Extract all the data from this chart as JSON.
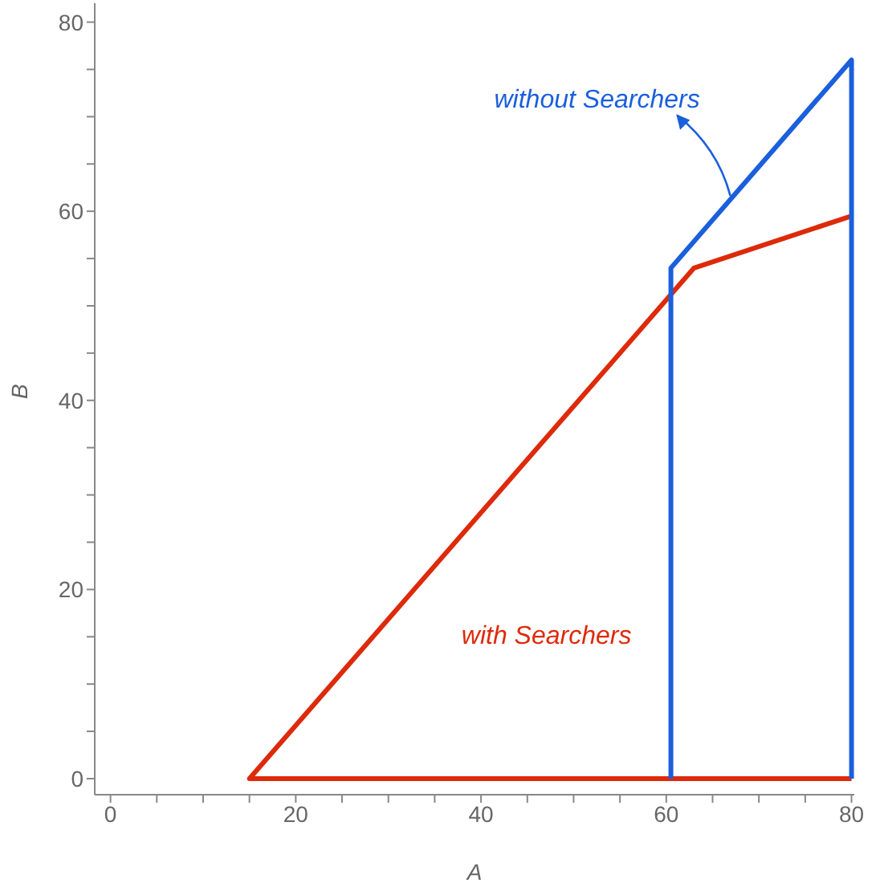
{
  "chart_data": {
    "type": "line",
    "xlabel": "A",
    "ylabel": "B",
    "xlim": [
      -1.7,
      80.3
    ],
    "ylim": [
      -1.7,
      82
    ],
    "xticks": [
      0,
      {
        "value": 5,
        "label": null
      },
      {
        "value": 10,
        "label": null
      },
      {
        "value": 15,
        "label": null
      },
      20,
      {
        "value": 25,
        "label": null
      },
      {
        "value": 30,
        "label": null
      },
      {
        "value": 35,
        "label": null
      },
      40,
      {
        "value": 45,
        "label": null
      },
      {
        "value": 50,
        "label": null
      },
      {
        "value": 55,
        "label": null
      },
      60,
      {
        "value": 65,
        "label": null
      },
      {
        "value": 70,
        "label": null
      },
      {
        "value": 75,
        "label": null
      },
      80
    ],
    "yticks": [
      0,
      {
        "value": 5,
        "label": null
      },
      {
        "value": 10,
        "label": null
      },
      {
        "value": 15,
        "label": null
      },
      20,
      {
        "value": 25,
        "label": null
      },
      {
        "value": 30,
        "label": null
      },
      {
        "value": 35,
        "label": null
      },
      40,
      {
        "value": 45,
        "label": null
      },
      {
        "value": 50,
        "label": null
      },
      {
        "value": 55,
        "label": null
      },
      60,
      {
        "value": 65,
        "label": null
      },
      {
        "value": 70,
        "label": null
      },
      {
        "value": 75,
        "label": null
      },
      80
    ],
    "grid": false,
    "legend": false,
    "marker": "none",
    "line_style": "solid",
    "series": [
      {
        "name": "with Searchers",
        "color": "#dd2a0a",
        "x": [
          80,
          15,
          63,
          80
        ],
        "values": [
          0,
          0,
          54,
          59.5
        ]
      },
      {
        "name": "without Searchers",
        "color": "#1a5fdc",
        "x": [
          60.5,
          60.5,
          80,
          80
        ],
        "values": [
          0,
          54,
          76,
          0
        ]
      }
    ]
  }
}
